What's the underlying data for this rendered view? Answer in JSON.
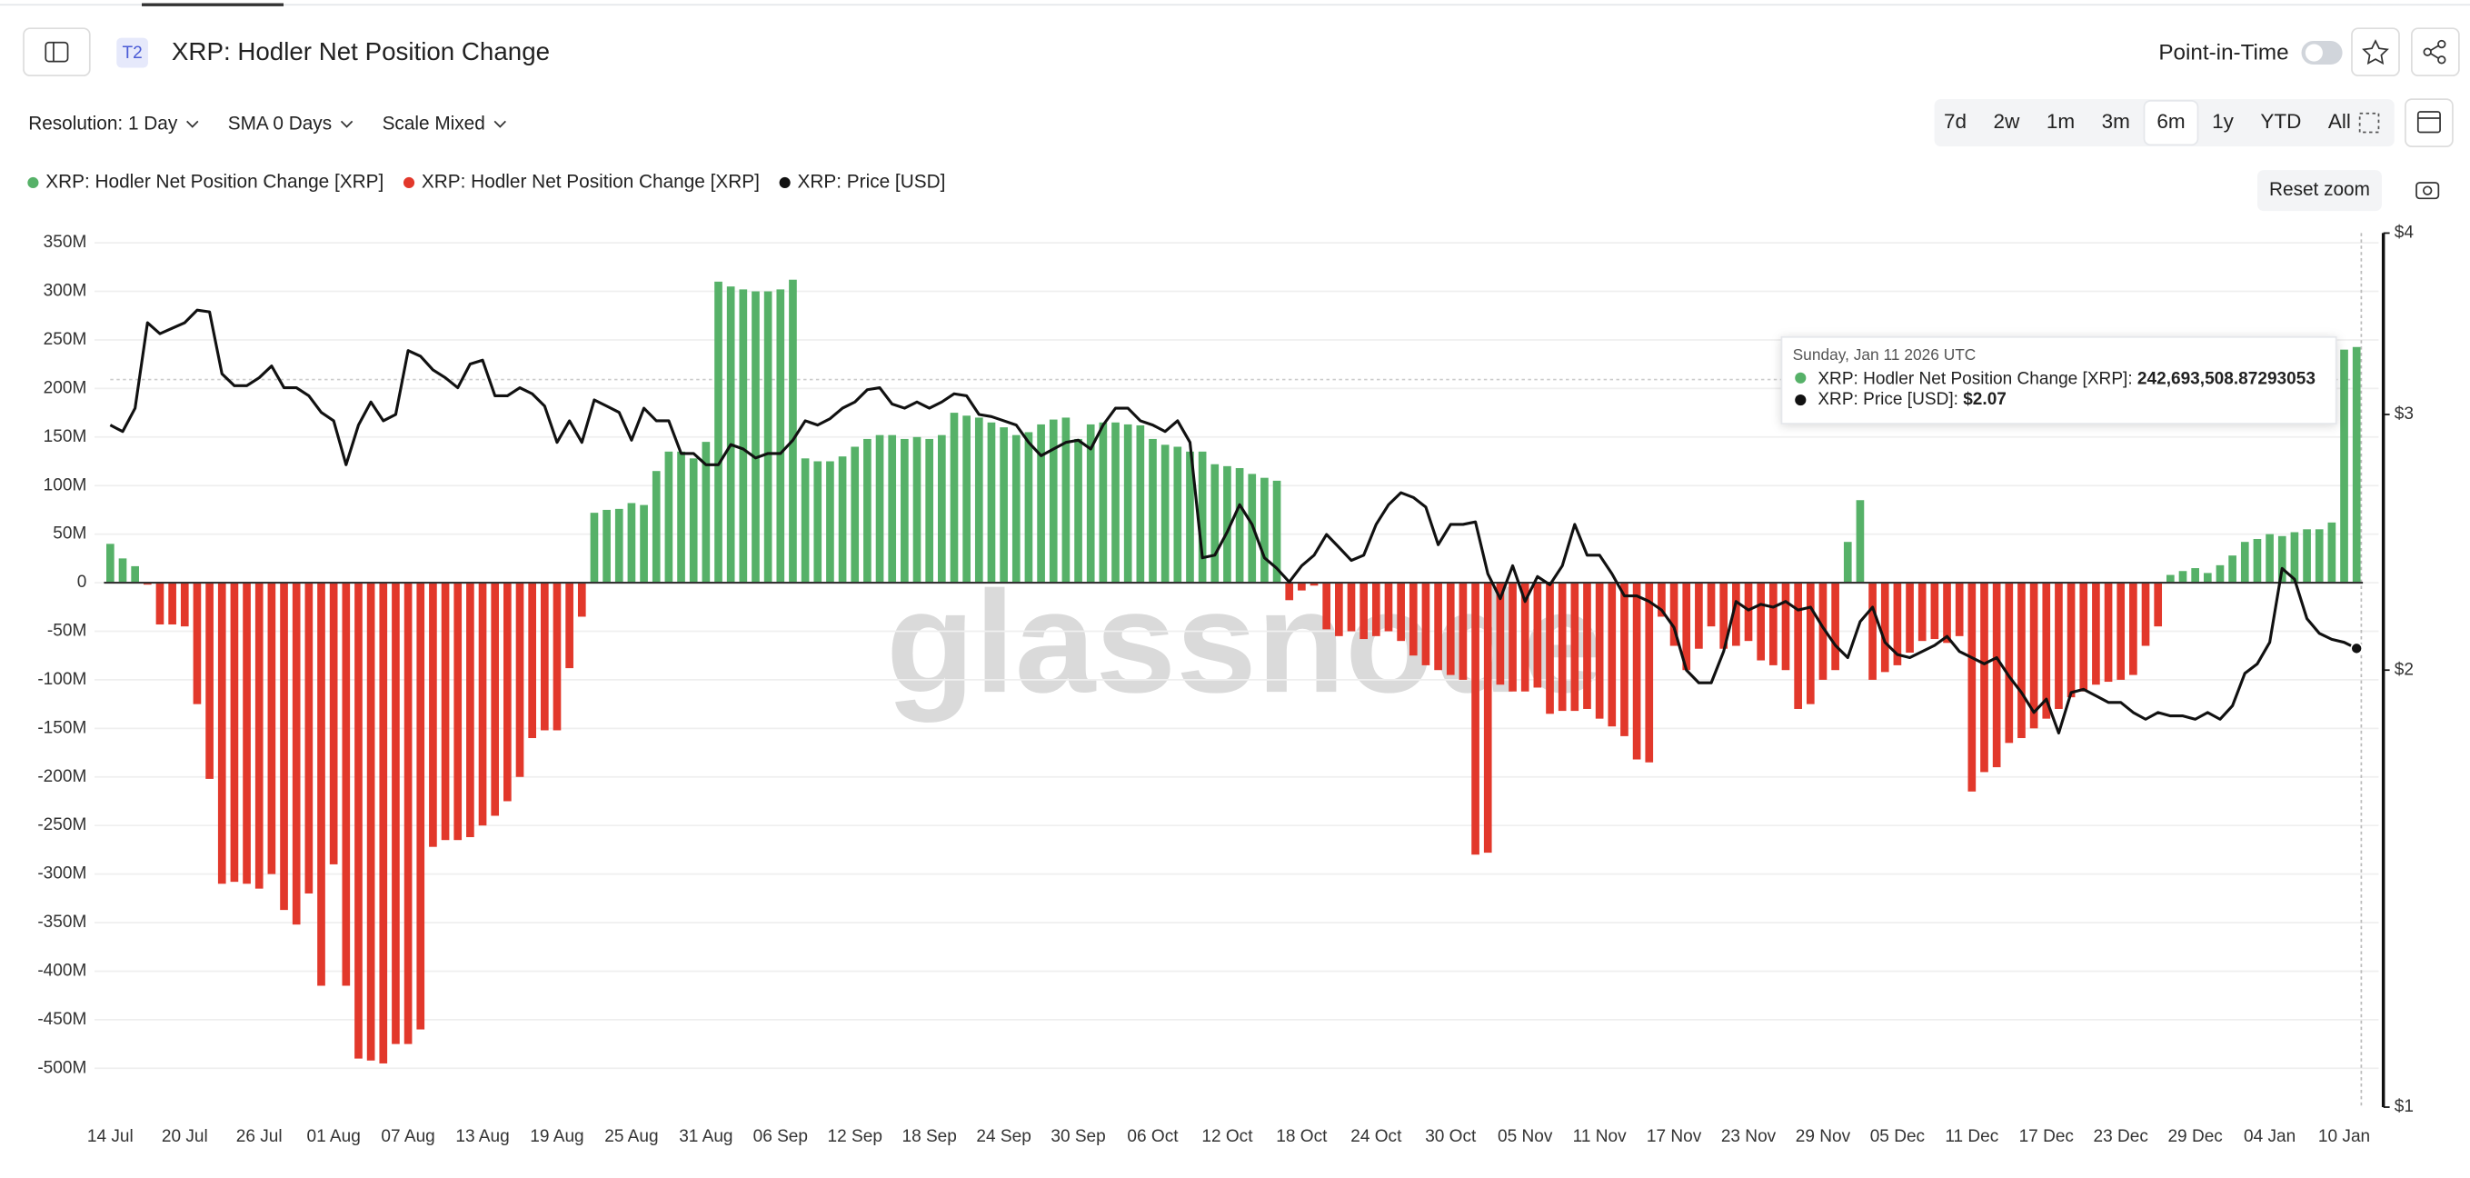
{
  "page": {
    "badge": "T2",
    "point_in_time": "Point-in-Time",
    "controls": [
      "Resolution: 1 Day",
      "SMA 0 Days",
      "Scale Mixed"
    ],
    "ranges": [
      "7d",
      "2w",
      "1m",
      "3m",
      "6m",
      "1y",
      "YTD",
      "All"
    ],
    "selected_range": 4,
    "reset_zoom": "Reset zoom",
    "watermark": "glassnode"
  },
  "tooltip": {
    "date": "Sunday, Jan 11 2026 UTC",
    "rows": [
      {
        "label": "XRP: Hodler Net Position Change [XRP]:",
        "value": "242,693,508.87293053"
      },
      {
        "label": "XRP: Price [USD]:",
        "value": "$2.07"
      }
    ]
  },
  "chart_data": {
    "type": "bar",
    "title": "XRP: Hodler Net Position Change",
    "categories": [
      "14 Jul",
      null,
      null,
      null,
      null,
      null,
      "20 Jul",
      null,
      null,
      null,
      null,
      null,
      "26 Jul",
      null,
      null,
      null,
      null,
      null,
      "01 Aug",
      null,
      null,
      null,
      null,
      null,
      "07 Aug",
      null,
      null,
      null,
      null,
      null,
      "13 Aug",
      null,
      null,
      null,
      null,
      null,
      "19 Aug",
      null,
      null,
      null,
      null,
      null,
      "25 Aug",
      null,
      null,
      null,
      null,
      null,
      "31 Aug",
      null,
      null,
      null,
      null,
      null,
      "06 Sep",
      null,
      null,
      null,
      null,
      null,
      "12 Sep",
      null,
      null,
      null,
      null,
      null,
      "18 Sep",
      null,
      null,
      null,
      null,
      null,
      "24 Sep",
      null,
      null,
      null,
      null,
      null,
      "30 Sep",
      null,
      null,
      null,
      null,
      null,
      "06 Oct",
      null,
      null,
      null,
      null,
      null,
      "12 Oct",
      null,
      null,
      null,
      null,
      null,
      "18 Oct",
      null,
      null,
      null,
      null,
      null,
      "24 Oct",
      null,
      null,
      null,
      null,
      null,
      "30 Oct",
      null,
      null,
      null,
      null,
      null,
      "05 Nov",
      null,
      null,
      null,
      null,
      null,
      "11 Nov",
      null,
      null,
      null,
      null,
      null,
      "17 Nov",
      null,
      null,
      null,
      null,
      null,
      "23 Nov",
      null,
      null,
      null,
      null,
      null,
      "29 Nov",
      null,
      null,
      null,
      null,
      null,
      "05 Dec",
      null,
      null,
      null,
      null,
      null,
      "11 Dec",
      null,
      null,
      null,
      null,
      null,
      "17 Dec",
      null,
      null,
      null,
      null,
      null,
      "23 Dec",
      null,
      null,
      null,
      null,
      null,
      "29 Dec",
      null,
      null,
      null,
      null,
      null,
      "04 Jan",
      null,
      null,
      null,
      null,
      null,
      "10 Jan",
      null
    ],
    "series": [
      {
        "name": "XRP: Hodler Net Position Change [XRP]",
        "color": "#56b168",
        "values": [
          40000000,
          25000000,
          17000000,
          null,
          null,
          null,
          null,
          null,
          null,
          null,
          null,
          null,
          null,
          null,
          null,
          null,
          null,
          null,
          null,
          null,
          null,
          null,
          null,
          null,
          null,
          null,
          null,
          null,
          null,
          null,
          null,
          null,
          null,
          null,
          null,
          null,
          null,
          null,
          null,
          72000000,
          75000000,
          76000000,
          82000000,
          80000000,
          115000000,
          135000000,
          135000000,
          128000000,
          145000000,
          310000000,
          305000000,
          302000000,
          300000000,
          300000000,
          302000000,
          312000000,
          128000000,
          125000000,
          125000000,
          130000000,
          140000000,
          148000000,
          152000000,
          152000000,
          148000000,
          150000000,
          148000000,
          152000000,
          175000000,
          172000000,
          170000000,
          165000000,
          160000000,
          152000000,
          155000000,
          163000000,
          168000000,
          170000000,
          148000000,
          163000000,
          165000000,
          165000000,
          163000000,
          162000000,
          148000000,
          142000000,
          140000000,
          135000000,
          135000000,
          122000000,
          120000000,
          118000000,
          112000000,
          108000000,
          105000000,
          null,
          null,
          null,
          null,
          null,
          null,
          null,
          null,
          null,
          null,
          null,
          null,
          null,
          null,
          null,
          null,
          null,
          null,
          null,
          null,
          null,
          null,
          null,
          null,
          null,
          null,
          null,
          null,
          null,
          null,
          null,
          null,
          null,
          null,
          null,
          null,
          null,
          null,
          null,
          null,
          null,
          null,
          null,
          null,
          null,
          42000000,
          85000000,
          null,
          null,
          null,
          null,
          null,
          null,
          null,
          null,
          null,
          null,
          null,
          null,
          null,
          null,
          null,
          null,
          null,
          null,
          null,
          null,
          null,
          null,
          null,
          null,
          8000000,
          12000000,
          15000000,
          10000000,
          18000000,
          28000000,
          42000000,
          45000000,
          50000000,
          48000000,
          52000000,
          55000000,
          55000000,
          62000000,
          240000000,
          242693508.87293053
        ]
      },
      {
        "name": "XRP: Hodler Net Position Change [XRP]",
        "color": "#e2382b",
        "values": [
          null,
          null,
          null,
          -2000000,
          -43000000,
          -43000000,
          -45000000,
          -125000000,
          -202000000,
          -310000000,
          -308000000,
          -310000000,
          -315000000,
          -300000000,
          -337000000,
          -352000000,
          -320000000,
          -415000000,
          -290000000,
          -415000000,
          -490000000,
          -492000000,
          -495000000,
          -475000000,
          -475000000,
          -460000000,
          -272000000,
          -265000000,
          -265000000,
          -262000000,
          -250000000,
          -240000000,
          -225000000,
          -200000000,
          -160000000,
          -152000000,
          -152000000,
          -88000000,
          -35000000,
          null,
          null,
          null,
          null,
          null,
          null,
          null,
          null,
          null,
          null,
          null,
          null,
          null,
          null,
          null,
          null,
          null,
          null,
          null,
          null,
          null,
          null,
          null,
          null,
          null,
          null,
          null,
          null,
          null,
          null,
          null,
          null,
          null,
          null,
          null,
          null,
          null,
          null,
          null,
          null,
          null,
          null,
          null,
          null,
          null,
          null,
          null,
          null,
          null,
          null,
          null,
          null,
          null,
          null,
          null,
          null,
          -18000000,
          -8000000,
          -3000000,
          -48000000,
          -55000000,
          -50000000,
          -58000000,
          -55000000,
          -50000000,
          -60000000,
          -75000000,
          -85000000,
          -90000000,
          -95000000,
          -100000000,
          -280000000,
          -278000000,
          -105000000,
          -112000000,
          -112000000,
          -108000000,
          -135000000,
          -132000000,
          -132000000,
          -130000000,
          -140000000,
          -148000000,
          -158000000,
          -182000000,
          -185000000,
          -35000000,
          -65000000,
          -90000000,
          -68000000,
          -45000000,
          -68000000,
          -65000000,
          -60000000,
          -80000000,
          -85000000,
          -90000000,
          -130000000,
          -125000000,
          -100000000,
          -90000000,
          null,
          null,
          -100000000,
          -92000000,
          -85000000,
          -72000000,
          -60000000,
          -58000000,
          -62000000,
          -55000000,
          -215000000,
          -195000000,
          -190000000,
          -165000000,
          -160000000,
          -150000000,
          -140000000,
          -130000000,
          -118000000,
          -112000000,
          -105000000,
          -102000000,
          -100000000,
          -95000000,
          -65000000,
          -45000000,
          null,
          null,
          null,
          null,
          null,
          null,
          null,
          null,
          null,
          null,
          null,
          null,
          null,
          null,
          null,
          null
        ]
      },
      {
        "name": "XRP: Price [USD]",
        "color": "#111111",
        "type": "line",
        "axis": "y2",
        "values": [
          2.95,
          2.92,
          3.03,
          3.47,
          3.41,
          3.44,
          3.47,
          3.54,
          3.53,
          3.2,
          3.14,
          3.14,
          3.18,
          3.24,
          3.13,
          3.13,
          3.09,
          3.01,
          2.97,
          2.77,
          2.95,
          3.06,
          2.97,
          3.0,
          3.32,
          3.29,
          3.22,
          3.18,
          3.13,
          3.25,
          3.27,
          3.09,
          3.09,
          3.13,
          3.1,
          3.04,
          2.87,
          2.97,
          2.87,
          3.07,
          3.04,
          3.01,
          2.88,
          3.03,
          2.97,
          2.97,
          2.82,
          2.82,
          2.77,
          2.77,
          2.86,
          2.84,
          2.8,
          2.82,
          2.82,
          2.88,
          2.97,
          2.95,
          2.98,
          3.03,
          3.06,
          3.12,
          3.13,
          3.05,
          3.03,
          3.06,
          3.03,
          3.06,
          3.1,
          3.09,
          3.0,
          2.99,
          2.97,
          2.95,
          2.87,
          2.81,
          2.84,
          2.87,
          2.88,
          2.84,
          2.95,
          3.03,
          3.03,
          2.97,
          2.95,
          2.92,
          2.97,
          2.87,
          2.39,
          2.4,
          2.49,
          2.6,
          2.52,
          2.39,
          2.35,
          2.3,
          2.36,
          2.4,
          2.48,
          2.43,
          2.38,
          2.4,
          2.52,
          2.6,
          2.65,
          2.63,
          2.59,
          2.44,
          2.52,
          2.52,
          2.53,
          2.33,
          2.24,
          2.36,
          2.23,
          2.32,
          2.29,
          2.36,
          2.52,
          2.4,
          2.4,
          2.33,
          2.25,
          2.25,
          2.23,
          2.2,
          2.14,
          2.0,
          1.96,
          1.96,
          2.06,
          2.23,
          2.2,
          2.22,
          2.21,
          2.23,
          2.2,
          2.21,
          2.14,
          2.08,
          2.04,
          2.16,
          2.21,
          2.09,
          2.05,
          2.04,
          2.06,
          2.08,
          2.11,
          2.06,
          2.04,
          2.02,
          2.04,
          1.98,
          1.93,
          1.87,
          1.91,
          1.81,
          1.93,
          1.94,
          1.92,
          1.9,
          1.9,
          1.87,
          1.85,
          1.87,
          1.86,
          1.86,
          1.85,
          1.87,
          1.85,
          1.89,
          1.99,
          2.02,
          2.09,
          2.35,
          2.31,
          2.17,
          2.12,
          2.1,
          2.09,
          2.07
        ]
      }
    ],
    "ylim": [
      -540000000,
      360000000
    ],
    "yticks": [
      {
        "value": 350000000,
        "label": "350M"
      },
      {
        "value": 300000000,
        "label": "300M"
      },
      {
        "value": 250000000,
        "label": "250M"
      },
      {
        "value": 200000000,
        "label": "200M"
      },
      {
        "value": 150000000,
        "label": "150M"
      },
      {
        "value": 100000000,
        "label": "100M"
      },
      {
        "value": 50000000,
        "label": "50M"
      },
      0,
      {
        "value": -50000000,
        "label": "-50M"
      },
      {
        "value": -100000000,
        "label": "-100M"
      },
      {
        "value": -150000000,
        "label": "-150M"
      },
      {
        "value": -200000000,
        "label": "-200M"
      },
      {
        "value": -250000000,
        "label": "-250M"
      },
      {
        "value": -300000000,
        "label": "-300M"
      },
      {
        "value": -350000000,
        "label": "-350M"
      },
      {
        "value": -400000000,
        "label": "-400M"
      },
      {
        "value": -450000000,
        "label": "-450M"
      },
      {
        "value": -500000000,
        "label": "-500M"
      }
    ],
    "y2lim": [
      1,
      4
    ],
    "y2log": true,
    "y2ticks": [
      {
        "value": 4,
        "label": "$4"
      },
      {
        "value": 3,
        "label": "$3"
      },
      {
        "value": 2,
        "label": "$2"
      },
      {
        "value": 1,
        "label": "$1"
      }
    ],
    "grid": true
  }
}
